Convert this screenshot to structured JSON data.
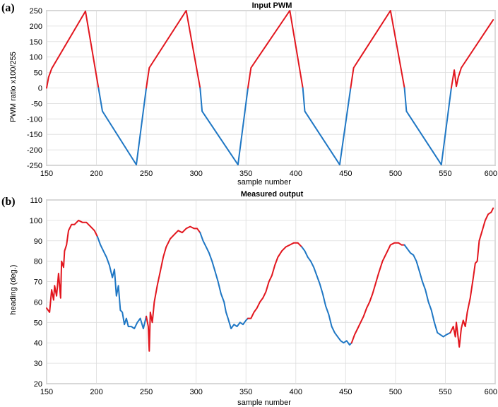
{
  "colors": {
    "red_series": "#e2161e",
    "blue_series": "#1f77c4",
    "grid": "#dcdcdc"
  },
  "chart_data": [
    {
      "type": "line",
      "panel_label": "(a)",
      "title": "Input PWM",
      "xlabel": "sample number",
      "ylabel": "PWM ratio x100/255",
      "xlim": [
        150,
        600
      ],
      "ylim": [
        -250,
        250
      ],
      "xticks": [
        150,
        200,
        250,
        300,
        350,
        400,
        450,
        500,
        550,
        600
      ],
      "yticks": [
        250,
        200,
        150,
        100,
        50,
        0,
        -50,
        -100,
        -150,
        -200,
        -250
      ],
      "grid": true,
      "segments": [
        {
          "color": "red",
          "x": [
            150,
            152,
            155,
            189,
            202
          ],
          "y": [
            0,
            35,
            62,
            248,
            0
          ]
        },
        {
          "color": "blue",
          "x": [
            202,
            206,
            240,
            250
          ],
          "y": [
            0,
            -75,
            -248,
            0
          ]
        },
        {
          "color": "red",
          "x": [
            250,
            253,
            290,
            304
          ],
          "y": [
            0,
            65,
            250,
            0
          ]
        },
        {
          "color": "blue",
          "x": [
            304,
            306,
            342,
            352
          ],
          "y": [
            0,
            -75,
            -248,
            0
          ]
        },
        {
          "color": "red",
          "x": [
            352,
            355,
            394,
            407
          ],
          "y": [
            0,
            65,
            250,
            0
          ]
        },
        {
          "color": "blue",
          "x": [
            407,
            409,
            444,
            455
          ],
          "y": [
            0,
            -75,
            -248,
            0
          ]
        },
        {
          "color": "red",
          "x": [
            455,
            458,
            495,
            509
          ],
          "y": [
            0,
            65,
            250,
            0
          ]
        },
        {
          "color": "blue",
          "x": [
            509,
            511,
            546,
            556
          ],
          "y": [
            0,
            -75,
            -248,
            0
          ]
        },
        {
          "color": "red",
          "x": [
            556,
            559,
            561,
            563,
            566,
            598
          ],
          "y": [
            0,
            58,
            5,
            35,
            65,
            220
          ]
        }
      ]
    },
    {
      "type": "line",
      "panel_label": "(b)",
      "title": "Measured output",
      "xlabel": "sample number",
      "ylabel": "heading (deg.)",
      "xlim": [
        150,
        600
      ],
      "ylim": [
        20,
        110
      ],
      "xticks": [
        150,
        200,
        250,
        300,
        350,
        400,
        450,
        500,
        550,
        600
      ],
      "yticks": [
        110,
        100,
        90,
        80,
        70,
        60,
        50,
        40,
        30,
        20
      ],
      "grid": true,
      "segments": [
        {
          "color": "red",
          "x": [
            150,
            153,
            155,
            157,
            158,
            160,
            162,
            164,
            165,
            167,
            168,
            170,
            172,
            175,
            178,
            182,
            186,
            190,
            194,
            198,
            201
          ],
          "y": [
            57,
            55,
            66,
            61,
            68,
            63,
            74,
            62,
            80,
            77,
            85,
            88,
            95,
            98,
            98,
            100,
            99,
            99,
            97,
            95,
            92
          ]
        },
        {
          "color": "blue",
          "x": [
            201,
            204,
            207,
            210,
            213,
            216,
            218,
            220,
            222,
            224,
            226,
            228,
            230,
            232,
            235,
            238,
            241,
            244,
            247,
            250
          ],
          "y": [
            92,
            88,
            85,
            82,
            78,
            72,
            76,
            63,
            68,
            56,
            55,
            49,
            52,
            48,
            48,
            47,
            50,
            52,
            47,
            53
          ]
        },
        {
          "color": "red",
          "x": [
            250,
            252,
            253,
            254,
            256,
            258,
            261,
            264,
            267,
            270,
            274,
            278,
            282,
            286,
            290,
            294,
            298,
            301,
            304
          ],
          "y": [
            53,
            48,
            36,
            55,
            50,
            60,
            68,
            75,
            82,
            87,
            91,
            93,
            95,
            94,
            96,
            97,
            96,
            96,
            94
          ]
        },
        {
          "color": "blue",
          "x": [
            304,
            307,
            310,
            313,
            316,
            319,
            322,
            325,
            328,
            330,
            332,
            335,
            338,
            341,
            344,
            347,
            350,
            352
          ],
          "y": [
            94,
            90,
            87,
            84,
            80,
            75,
            70,
            64,
            60,
            55,
            52,
            47,
            49,
            48,
            50,
            49,
            51,
            52
          ]
        },
        {
          "color": "red",
          "x": [
            352,
            355,
            358,
            361,
            364,
            367,
            370,
            373,
            376,
            379,
            382,
            386,
            390,
            394,
            398,
            402,
            406
          ],
          "y": [
            52,
            52,
            55,
            57,
            60,
            62,
            65,
            70,
            73,
            78,
            82,
            85,
            87,
            88,
            89,
            89,
            87
          ]
        },
        {
          "color": "blue",
          "x": [
            406,
            409,
            412,
            415,
            418,
            421,
            424,
            427,
            430,
            433,
            436,
            439,
            442,
            445,
            448,
            451,
            454,
            456
          ],
          "y": [
            87,
            85,
            82,
            80,
            77,
            73,
            69,
            64,
            58,
            54,
            48,
            45,
            43,
            41,
            40,
            41,
            39,
            40
          ]
        },
        {
          "color": "red",
          "x": [
            456,
            459,
            462,
            465,
            468,
            471,
            474,
            477,
            480,
            483,
            487,
            491,
            495,
            499,
            503,
            506,
            509
          ],
          "y": [
            40,
            44,
            47,
            50,
            53,
            57,
            60,
            64,
            69,
            74,
            80,
            84,
            88,
            89,
            89,
            88,
            88
          ]
        },
        {
          "color": "blue",
          "x": [
            509,
            512,
            515,
            518,
            521,
            524,
            527,
            530,
            533,
            536,
            539,
            542,
            545,
            548,
            551,
            555
          ],
          "y": [
            88,
            86,
            84,
            83,
            80,
            75,
            70,
            66,
            60,
            56,
            50,
            45,
            44,
            43,
            44,
            45
          ]
        },
        {
          "color": "red",
          "x": [
            555,
            558,
            560,
            561,
            563,
            564,
            566,
            568,
            570,
            572,
            575,
            578,
            580,
            582,
            584,
            587,
            590,
            593,
            596,
            598
          ],
          "y": [
            45,
            48,
            43,
            50,
            42,
            38,
            47,
            51,
            48,
            55,
            62,
            72,
            79,
            80,
            90,
            95,
            100,
            103,
            104,
            106
          ]
        }
      ]
    }
  ]
}
